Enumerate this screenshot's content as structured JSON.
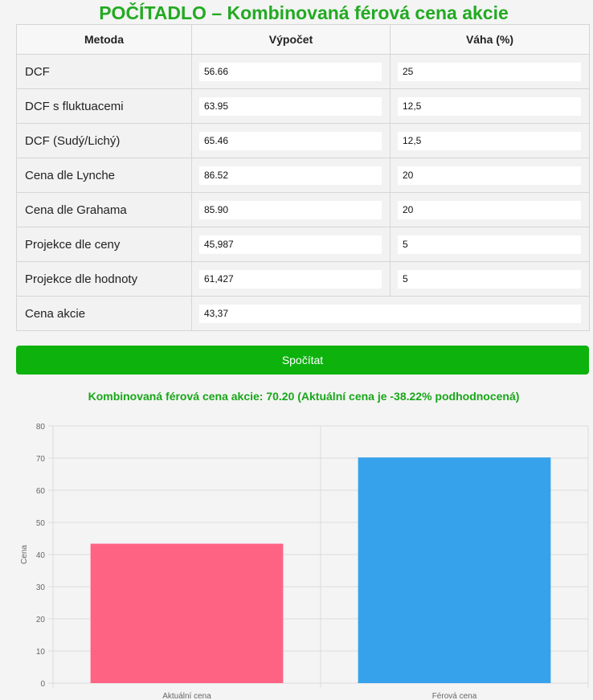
{
  "header": {
    "title": "POČÍTADLO – Kombinovaná férová cena akcie"
  },
  "table": {
    "headers": [
      "Metoda",
      "Výpočet",
      "Váha (%)"
    ],
    "rows": [
      {
        "method": "DCF",
        "value": "56.66",
        "weight": "25"
      },
      {
        "method": "DCF s fluktuacemi",
        "value": "63.95",
        "weight": "12,5"
      },
      {
        "method": "DCF (Sudý/Lichý)",
        "value": "65.46",
        "weight": "12,5"
      },
      {
        "method": "Cena dle Lynche",
        "value": "86.52",
        "weight": "20"
      },
      {
        "method": "Cena dle Grahama",
        "value": "85.90",
        "weight": "20"
      },
      {
        "method": "Projekce dle ceny",
        "value": "45,987",
        "weight": "5"
      },
      {
        "method": "Projekce dle hodnoty",
        "value": "61,427",
        "weight": "5"
      }
    ],
    "price_row": {
      "label": "Cena akcie",
      "value": "43,37"
    }
  },
  "button": {
    "label": "Spočítat"
  },
  "result": {
    "text": "Kombinovaná férová cena akcie: 70.20 (Aktuální cena je -38.22% podhodnocená)"
  },
  "chart_data": {
    "type": "bar",
    "categories": [
      "Aktuální cena",
      "Férová cena"
    ],
    "values": [
      43.37,
      70.2
    ],
    "colors": [
      "#ff6384",
      "#36a2eb"
    ],
    "ylabel": "Cena",
    "ylim": [
      0,
      80
    ],
    "yticks": [
      0,
      10,
      20,
      30,
      40,
      50,
      60,
      70,
      80
    ],
    "grid": true
  }
}
